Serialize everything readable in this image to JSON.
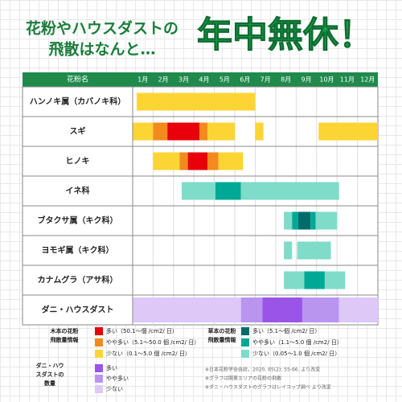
{
  "title": {
    "lines": [
      "花粉やハウスダストの",
      "飛散はなんと…"
    ],
    "big": "年中無休！"
  },
  "table": {
    "header_label": "花粉名",
    "months": [
      "1月",
      "2月",
      "3月",
      "4月",
      "5月",
      "6月",
      "7月",
      "8月",
      "9月",
      "10月",
      "11月",
      "12月"
    ],
    "rows": [
      {
        "label": "ハンノキ属（カバノキ科）",
        "segments": [
          {
            "start": 1.2,
            "end": 7.0,
            "color": "#fcd535"
          }
        ]
      },
      {
        "label": "スギ",
        "segments": [
          {
            "start": 1.0,
            "end": 2.0,
            "color": "#fcd535"
          },
          {
            "start": 2.0,
            "end": 2.7,
            "color": "#f28a1e"
          },
          {
            "start": 2.7,
            "end": 4.27,
            "color": "#e8000b"
          },
          {
            "start": 4.27,
            "end": 4.66,
            "color": "#f28a1e"
          },
          {
            "start": 4.66,
            "end": 6.0,
            "color": "#fcd535"
          },
          {
            "start": 7.0,
            "end": 7.4,
            "color": "#fcd535"
          },
          {
            "start": 10.1,
            "end": 13.0,
            "color": "#fcd535"
          }
        ]
      },
      {
        "label": "ヒノキ",
        "segments": [
          {
            "start": 2.0,
            "end": 3.3,
            "color": "#fcd535"
          },
          {
            "start": 3.3,
            "end": 3.7,
            "color": "#f28a1e"
          },
          {
            "start": 3.7,
            "end": 4.66,
            "color": "#e8000b"
          },
          {
            "start": 4.66,
            "end": 5.2,
            "color": "#f28a1e"
          },
          {
            "start": 5.2,
            "end": 6.4,
            "color": "#fcd535"
          }
        ]
      },
      {
        "label": "イネ科",
        "segments": [
          {
            "start": 3.4,
            "end": 5.05,
            "color": "#7fdcc8"
          },
          {
            "start": 5.05,
            "end": 6.3,
            "color": "#00a896"
          },
          {
            "start": 6.3,
            "end": 11.1,
            "color": "#7fdcc8"
          }
        ]
      },
      {
        "label": "ブタクサ属（キク科）",
        "segments": [
          {
            "start": 8.4,
            "end": 8.8,
            "color": "#7fdcc8"
          },
          {
            "start": 8.8,
            "end": 9.1,
            "color": "#00a896"
          },
          {
            "start": 9.1,
            "end": 9.7,
            "color": "#006b6b"
          },
          {
            "start": 9.7,
            "end": 9.95,
            "color": "#00a896"
          },
          {
            "start": 9.95,
            "end": 11.0,
            "color": "#7fdcc8"
          }
        ]
      },
      {
        "label": "ヨモギ属（キク科）",
        "segments": [
          {
            "start": 8.4,
            "end": 8.8,
            "color": "#7fdcc8"
          },
          {
            "start": 9.05,
            "end": 10.7,
            "color": "#7fdcc8"
          }
        ]
      },
      {
        "label": "カナムグラ（アサ科）",
        "segments": [
          {
            "start": 8.4,
            "end": 9.4,
            "color": "#7fdcc8"
          },
          {
            "start": 9.4,
            "end": 10.4,
            "color": "#00a896"
          },
          {
            "start": 10.4,
            "end": 11.4,
            "color": "#7fdcc8"
          }
        ]
      },
      {
        "label": "ダニ・ハウスダスト",
        "segments": [
          {
            "start": 1.0,
            "end": 6.3,
            "color": "#ddc8f8"
          },
          {
            "start": 6.3,
            "end": 7.35,
            "color": "#b995f0"
          },
          {
            "start": 7.35,
            "end": 9.3,
            "color": "#9a55e8"
          },
          {
            "start": 9.3,
            "end": 11.1,
            "color": "#b995f0"
          },
          {
            "start": 11.1,
            "end": 13.0,
            "color": "#ddc8f8"
          }
        ]
      }
    ]
  },
  "legend": [
    {
      "title": [
        "木本の花粉",
        "飛散量情報"
      ],
      "items": [
        {
          "label": "多い（50.1～個 /cm2/ 日）",
          "color": "#e8000b"
        },
        {
          "label": "やや多い（5.1～50.0 個 /cm2/ 日）",
          "color": "#f28a1e"
        },
        {
          "label": "少ない（0.1～5.0 個 /cm2/ 日）",
          "color": "#fcd535"
        }
      ]
    },
    {
      "title": [
        "草本の花粉",
        "飛散量情報"
      ],
      "items": [
        {
          "label": "多い（5.1～個 /cm2/ 日）",
          "color": "#006b6b"
        },
        {
          "label": "やや多い（1.1～5.0 個 /cm2/ 日）",
          "color": "#00a896"
        },
        {
          "label": "少ない（0.05～1.0 個 /cm2/ 日）",
          "color": "#7fdcc8"
        }
      ]
    },
    {
      "title": [
        "ダニ・ハウ",
        "スダストの",
        "数量"
      ],
      "items": [
        {
          "label": "多い",
          "color": "#9a55e8"
        },
        {
          "label": "やや多い",
          "color": "#b995f0"
        },
        {
          "label": "少ない",
          "color": "#ddc8f8"
        }
      ]
    }
  ],
  "notes": [
    "※日本花粉学会会誌，2020, 65(2): 55-66. より改変",
    "※グラフは関東エリアの花粉の飛散",
    "※ダニ・ハウスダストのグラフはレイコップ調べ より改変"
  ]
}
